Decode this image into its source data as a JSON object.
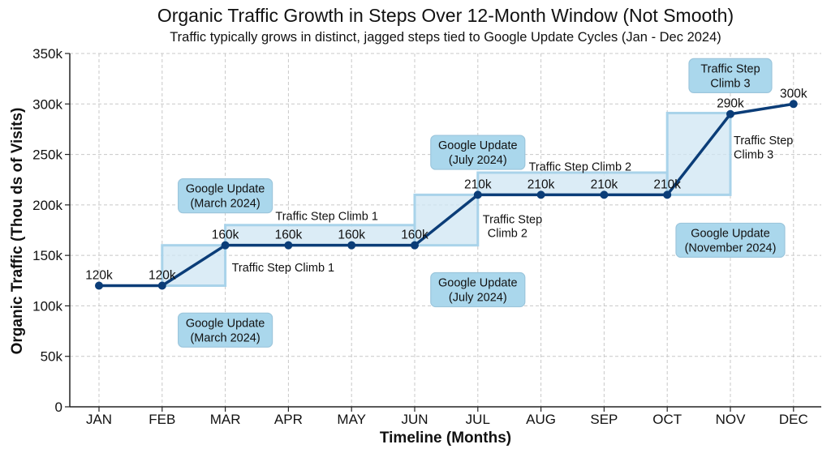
{
  "chart_data": {
    "type": "line",
    "title": "Organic Traffic Growth in Steps Over 12-Month Window (Not Smooth)",
    "subtitle": "Traffic typically grows in distinct, jagged steps tied to Google Update Cycles (Jan - Dec 2024)",
    "xlabel": "Timeline (Months)",
    "ylabel": "Organic Traffic (Thou ds of Visits)",
    "categories": [
      "JAN",
      "FEB",
      "MAR",
      "APR",
      "MAY",
      "JUN",
      "JUL",
      "AUG",
      "SEP",
      "OCT",
      "NOV",
      "DEC"
    ],
    "values": [
      120,
      120,
      160,
      160,
      160,
      160,
      210,
      210,
      210,
      210,
      290,
      300
    ],
    "data_labels": [
      "120k",
      "120k",
      "160k",
      "160k",
      "160k",
      "160k",
      "210k",
      "210k",
      "210k",
      "210k",
      "290k",
      "300k"
    ],
    "ylim": [
      0,
      350
    ],
    "yticks": [
      0,
      50,
      100,
      150,
      200,
      250,
      300,
      350
    ],
    "ytick_labels": [
      "0",
      "50k",
      "100k",
      "150k",
      "200k",
      "250k",
      "300k",
      "350k"
    ],
    "grid": true,
    "line_color": "#0b3d78",
    "step_fill_color": "#cfe6f3",
    "step_edge_color": "#a9d3ea",
    "box_fill_color": "#aad7ec",
    "step_bands": [
      {
        "x_from": "FEB",
        "x_to": "MAR",
        "y_from": 120,
        "y_to": 160
      },
      {
        "x_from": "MAR",
        "x_to": "JUN",
        "y_from": 160,
        "y_to": 180
      },
      {
        "x_from": "JUN",
        "x_to": "JUL",
        "y_from": 160,
        "y_to": 210
      },
      {
        "x_from": "JUL",
        "x_to": "OCT",
        "y_from": 210,
        "y_to": 232
      },
      {
        "x_from": "OCT",
        "x_to": "NOV",
        "y_from": 210,
        "y_to": 291
      }
    ],
    "annotations": [
      {
        "text": "Traffic Step Climb 1",
        "x": "MAR",
        "y": 138
      },
      {
        "text": "Traffic Step Climb 1",
        "x": "APR",
        "y": 189
      },
      {
        "text": "Traffic Step",
        "x": "JUL",
        "y": 186
      },
      {
        "text": "Climb 2",
        "x": "JUL",
        "y": 172
      },
      {
        "text": "Traffic Step Climb 2",
        "x": "AUG",
        "y": 238
      },
      {
        "text": "Traffic Step",
        "x": "NOV",
        "y": 264
      },
      {
        "text": "Climb 3",
        "x": "NOV",
        "y": 250
      }
    ],
    "boxes": [
      {
        "lines": [
          "Google Update",
          "(March 2024)"
        ],
        "x": 2.0,
        "y": 209
      },
      {
        "lines": [
          "Google Update",
          "(March 2024)"
        ],
        "x": 2.0,
        "y": 76
      },
      {
        "lines": [
          "Google Update",
          "(July 2024)"
        ],
        "x": 6.0,
        "y": 252
      },
      {
        "lines": [
          "Google Update",
          "(July 2024)"
        ],
        "x": 6.0,
        "y": 116
      },
      {
        "lines": [
          "Traffic  Step",
          "Climb 3"
        ],
        "x": 10.0,
        "y": 328
      },
      {
        "lines": [
          "Google Update",
          "(November 2024)"
        ],
        "x": 10.0,
        "y": 165
      }
    ]
  }
}
